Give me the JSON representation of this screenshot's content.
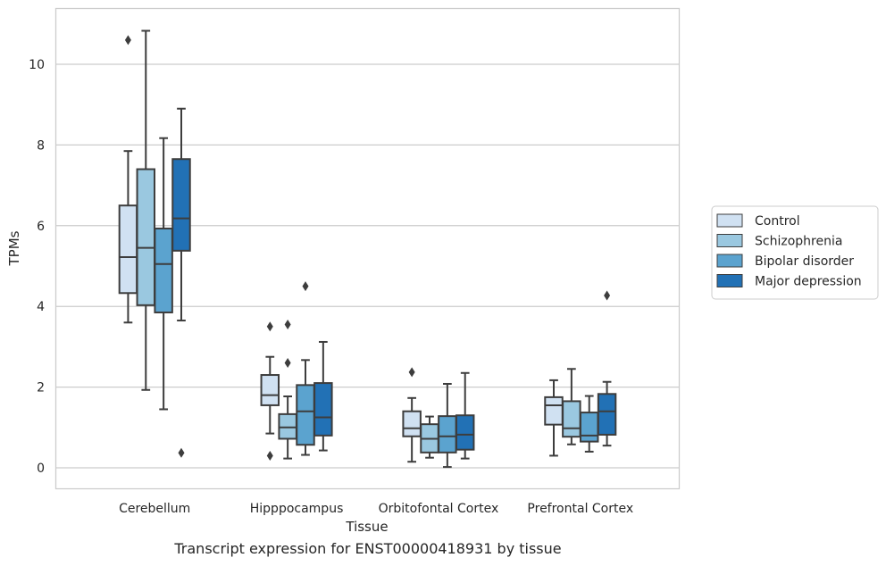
{
  "chart_data": {
    "type": "box",
    "title": "",
    "caption": "Transcript expression for ENST00000418931 by tissue",
    "xlabel": "Tissue",
    "ylabel": "TPMs",
    "ylim": [
      -0.5,
      11.3
    ],
    "yticks": [
      0,
      2,
      4,
      6,
      8,
      10
    ],
    "grid": "horizontal",
    "legend_position": "right",
    "categories": [
      "Cerebellum",
      "Hipppocampus",
      "Orbitofontal Cortex",
      "Prefrontal Cortex"
    ],
    "series": [
      {
        "name": "Control",
        "color": "#d0e1f2",
        "boxes": [
          {
            "whislo": 3.6,
            "q1": 4.33,
            "med": 5.22,
            "q3": 6.5,
            "whishi": 7.85,
            "fliers": [
              10.6
            ]
          },
          {
            "whislo": 0.85,
            "q1": 1.55,
            "med": 1.8,
            "q3": 2.3,
            "whishi": 2.75,
            "fliers": [
              0.3,
              3.5
            ]
          },
          {
            "whislo": 0.15,
            "q1": 0.78,
            "med": 0.98,
            "q3": 1.4,
            "whishi": 1.73,
            "fliers": [
              2.37
            ]
          },
          {
            "whislo": 0.3,
            "q1": 1.07,
            "med": 1.55,
            "q3": 1.75,
            "whishi": 2.17,
            "fliers": []
          }
        ]
      },
      {
        "name": "Schizophrenia",
        "color": "#9ac8e0",
        "boxes": [
          {
            "whislo": 1.93,
            "q1": 4.03,
            "med": 5.45,
            "q3": 7.4,
            "whishi": 10.83,
            "fliers": []
          },
          {
            "whislo": 0.23,
            "q1": 0.72,
            "med": 1.0,
            "q3": 1.33,
            "whishi": 1.77,
            "fliers": [
              2.6,
              3.55
            ]
          },
          {
            "whislo": 0.25,
            "q1": 0.38,
            "med": 0.72,
            "q3": 1.08,
            "whishi": 1.27,
            "fliers": []
          },
          {
            "whislo": 0.58,
            "q1": 0.77,
            "med": 0.98,
            "q3": 1.65,
            "whishi": 2.45,
            "fliers": []
          }
        ]
      },
      {
        "name": "Bipolar disorder",
        "color": "#5ba3cf",
        "boxes": [
          {
            "whislo": 1.45,
            "q1": 3.85,
            "med": 5.05,
            "q3": 5.93,
            "whishi": 8.17,
            "fliers": []
          },
          {
            "whislo": 0.32,
            "q1": 0.57,
            "med": 1.4,
            "q3": 2.05,
            "whishi": 2.67,
            "fliers": [
              4.5
            ]
          },
          {
            "whislo": 0.02,
            "q1": 0.38,
            "med": 0.78,
            "q3": 1.28,
            "whishi": 2.08,
            "fliers": []
          },
          {
            "whislo": 0.4,
            "q1": 0.65,
            "med": 0.8,
            "q3": 1.37,
            "whishi": 1.78,
            "fliers": []
          }
        ]
      },
      {
        "name": "Major depression",
        "color": "#2271b5",
        "boxes": [
          {
            "whislo": 3.65,
            "q1": 5.38,
            "med": 6.18,
            "q3": 7.65,
            "whishi": 8.9,
            "fliers": [
              0.37
            ]
          },
          {
            "whislo": 0.43,
            "q1": 0.8,
            "med": 1.25,
            "q3": 2.1,
            "whishi": 3.12,
            "fliers": []
          },
          {
            "whislo": 0.23,
            "q1": 0.45,
            "med": 0.82,
            "q3": 1.3,
            "whishi": 2.35,
            "fliers": []
          },
          {
            "whislo": 0.55,
            "q1": 0.82,
            "med": 1.4,
            "q3": 1.83,
            "whishi": 2.13,
            "fliers": [
              4.27
            ]
          }
        ]
      }
    ]
  }
}
